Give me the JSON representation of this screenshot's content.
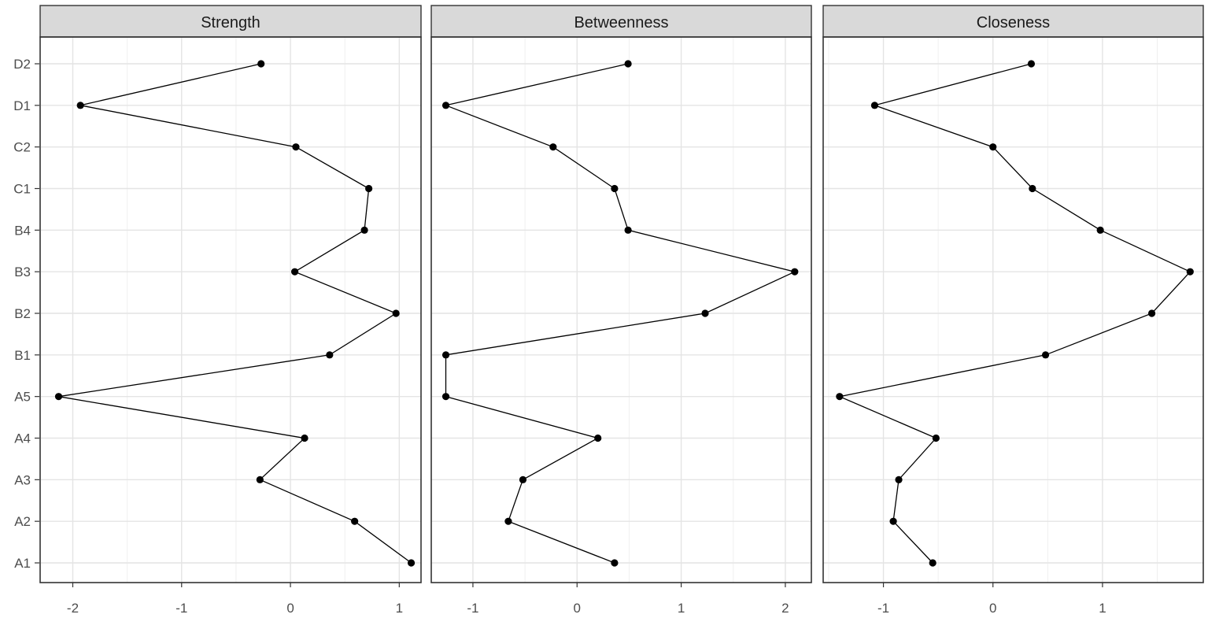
{
  "chart_data": {
    "type": "line",
    "layout": "facets",
    "categories": [
      "A1",
      "A2",
      "A3",
      "A4",
      "A5",
      "B1",
      "B2",
      "B3",
      "B4",
      "C1",
      "C2",
      "D1",
      "D2"
    ],
    "facets": [
      {
        "title": "Strength",
        "xlim": [
          -2.3,
          1.2
        ],
        "xticks": [
          -2,
          -1,
          0,
          1
        ],
        "values": [
          1.11,
          0.59,
          -0.28,
          0.13,
          -2.13,
          0.36,
          0.97,
          0.04,
          0.68,
          0.72,
          0.05,
          -1.93,
          -0.27
        ]
      },
      {
        "title": "Betweenness",
        "xlim": [
          -1.4,
          2.25
        ],
        "xticks": [
          -1,
          0,
          1,
          2
        ],
        "values": [
          0.36,
          -0.66,
          -0.52,
          0.2,
          -1.26,
          -1.26,
          1.23,
          2.09,
          0.49,
          0.36,
          -0.23,
          -1.26,
          0.49
        ]
      },
      {
        "title": "Closeness",
        "xlim": [
          -1.55,
          1.92
        ],
        "xticks": [
          -1,
          0,
          1
        ],
        "values": [
          -0.55,
          -0.91,
          -0.86,
          -0.52,
          -1.4,
          0.48,
          1.45,
          1.8,
          0.98,
          0.36,
          0.0,
          -1.08,
          0.35
        ]
      }
    ],
    "grid": true,
    "legend": "none"
  }
}
